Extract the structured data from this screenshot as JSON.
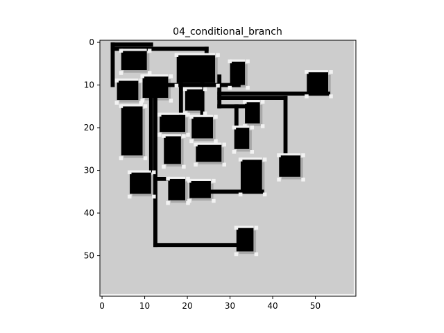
{
  "chart_data": {
    "type": "heatmap",
    "title": "04_conditional_branch",
    "xlabel": "",
    "ylabel": "",
    "xlim": [
      -0.5,
      59.5
    ],
    "ylim": [
      59.5,
      -0.5
    ],
    "xticks": [
      0,
      10,
      20,
      30,
      40,
      50
    ],
    "yticks": [
      0,
      10,
      20,
      30,
      40,
      50
    ],
    "grid": false,
    "colormap": "gray",
    "colors": {
      "background": "#cdcdcd",
      "block": "#000000",
      "shadow": "#a9a9a9",
      "highlight": "#f2f2f2"
    },
    "blocks": [
      {
        "x0": 4.5,
        "x1": 10.5,
        "y0": 2,
        "y1": 6.5
      },
      {
        "x0": 17.5,
        "x1": 26.5,
        "y0": 3,
        "y1": 9.5
      },
      {
        "x0": 30,
        "x1": 33.5,
        "y0": 4.5,
        "y1": 10
      },
      {
        "x0": 48,
        "x1": 53,
        "y0": 7,
        "y1": 12
      },
      {
        "x0": 3.5,
        "x1": 8.5,
        "y0": 9,
        "y1": 13.5
      },
      {
        "x0": 9.5,
        "x1": 15.5,
        "y0": 8,
        "y1": 13
      },
      {
        "x0": 19.5,
        "x1": 23.5,
        "y0": 11,
        "y1": 16
      },
      {
        "x0": 4.5,
        "x1": 9.5,
        "y0": 15,
        "y1": 26.5
      },
      {
        "x0": 33.5,
        "x1": 37,
        "y0": 14,
        "y1": 19
      },
      {
        "x0": 13.5,
        "x1": 19.5,
        "y0": 17,
        "y1": 21
      },
      {
        "x0": 21,
        "x1": 26,
        "y0": 17.5,
        "y1": 22.5
      },
      {
        "x0": 31,
        "x1": 34.5,
        "y0": 20,
        "y1": 25
      },
      {
        "x0": 14.5,
        "x1": 18.5,
        "y0": 22,
        "y1": 28.5
      },
      {
        "x0": 22,
        "x1": 28,
        "y0": 24,
        "y1": 28
      },
      {
        "x0": 32.5,
        "x1": 37.5,
        "y0": 27.5,
        "y1": 35
      },
      {
        "x0": 41.5,
        "x1": 46.5,
        "y0": 26.5,
        "y1": 31.5
      },
      {
        "x0": 6.5,
        "x1": 11.5,
        "y0": 30.5,
        "y1": 35.5
      },
      {
        "x0": 15.5,
        "x1": 19.5,
        "y0": 32,
        "y1": 37
      },
      {
        "x0": 20.5,
        "x1": 25.5,
        "y0": 32.5,
        "y1": 36.5
      },
      {
        "x0": 31.5,
        "x1": 35.5,
        "y0": 43.5,
        "y1": 49
      }
    ],
    "wires": [
      [
        [
          2.5,
          0.5
        ],
        [
          11.5,
          0.5
        ]
      ],
      [
        [
          2.5,
          0.5
        ],
        [
          2.5,
          10
        ]
      ],
      [
        [
          2.5,
          1.5
        ],
        [
          24.5,
          1.5
        ]
      ],
      [
        [
          24.5,
          1.5
        ],
        [
          24.5,
          5
        ]
      ],
      [
        [
          10.5,
          10
        ],
        [
          32,
          10
        ]
      ],
      [
        [
          11.5,
          10
        ],
        [
          11.5,
          30
        ]
      ],
      [
        [
          12.5,
          10
        ],
        [
          12.5,
          47.5
        ]
      ],
      [
        [
          12.5,
          32
        ],
        [
          15,
          32
        ]
      ],
      [
        [
          12.5,
          47.5
        ],
        [
          33.5,
          47.5
        ]
      ],
      [
        [
          18.5,
          10
        ],
        [
          18.5,
          17
        ]
      ],
      [
        [
          23.5,
          10
        ],
        [
          23.5,
          17
        ]
      ],
      [
        [
          27.5,
          8
        ],
        [
          27.5,
          15
        ]
      ],
      [
        [
          27.5,
          12
        ],
        [
          53,
          12
        ]
      ],
      [
        [
          27.5,
          13
        ],
        [
          43,
          13
        ]
      ],
      [
        [
          43,
          13
        ],
        [
          43,
          27
        ]
      ],
      [
        [
          27.5,
          15
        ],
        [
          35,
          15
        ]
      ],
      [
        [
          31.5,
          15
        ],
        [
          31.5,
          20
        ]
      ],
      [
        [
          21.5,
          35
        ],
        [
          37.5,
          35
        ]
      ]
    ]
  }
}
